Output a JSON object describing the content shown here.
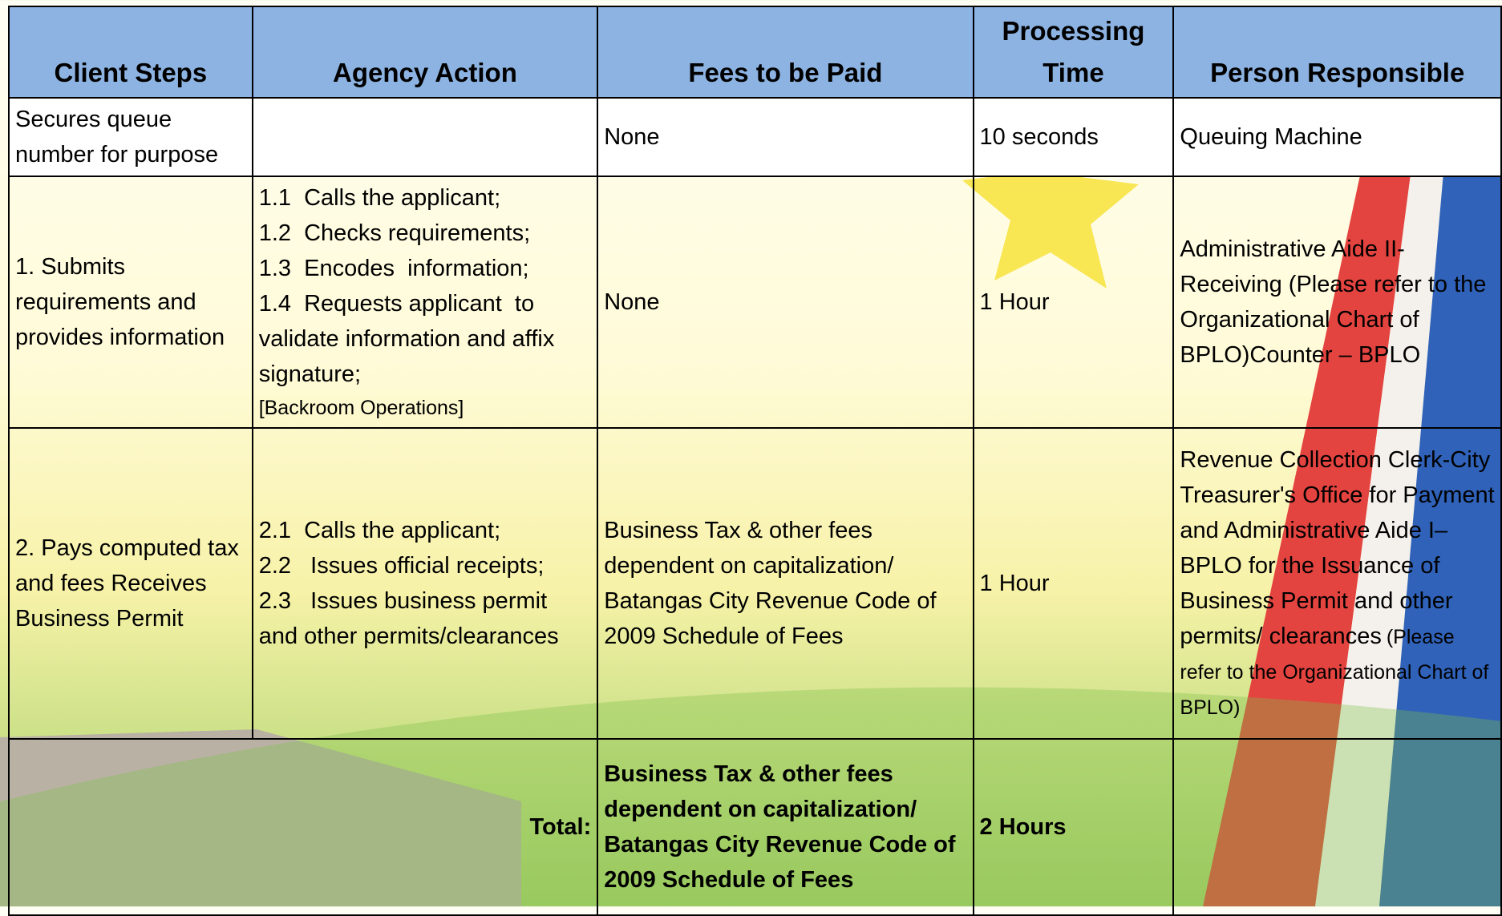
{
  "table": {
    "header": [
      "Client Steps",
      "Agency Action",
      "Fees to be Paid",
      "Processing Time",
      "Person Responsible"
    ],
    "rows": [
      {
        "client_step": "Secures queue number for purpose",
        "fees": "None",
        "time": "10 seconds",
        "person": "Queuing Machine"
      },
      {
        "client_step": "1. Submits requirements and provides information",
        "agency_action": [
          "1.1  Calls the applicant;",
          "1.2  Checks requirements;",
          "1.3  Encodes  information;",
          "1.4  Requests applicant  to validate information and affix signature;"
        ],
        "agency_action_note": "[Backroom Operations]",
        "fees": "None",
        "time": "1 Hour",
        "person": "Administrative Aide II-Receiving (Please refer to the Organizational Chart of BPLO)Counter – BPLO"
      },
      {
        "client_step": "2. Pays computed tax and fees Receives Business Permit",
        "agency_action": [
          "2.1  Calls the applicant;",
          "2.2   Issues official receipts;",
          "2.3   Issues business permit and other permits/clearances"
        ],
        "fees": "Business Tax & other fees dependent on capitalization/ Batangas City Revenue Code of  2009 Schedule of Fees",
        "time": "1 Hour",
        "person": "Revenue Collection Clerk-City Treasurer's Office for Payment and Administrative Aide I– BPLO for the Issuance of Business Permit and other permits/ clearances",
        "person_note": "(Please refer to the Organizational Chart of BPLO)"
      }
    ],
    "total": {
      "label": "Total:",
      "fees": "Business Tax & other fees dependent on capitalization/ Batangas City Revenue Code of  2009 Schedule of Fees",
      "time": "2 Hours"
    }
  }
}
